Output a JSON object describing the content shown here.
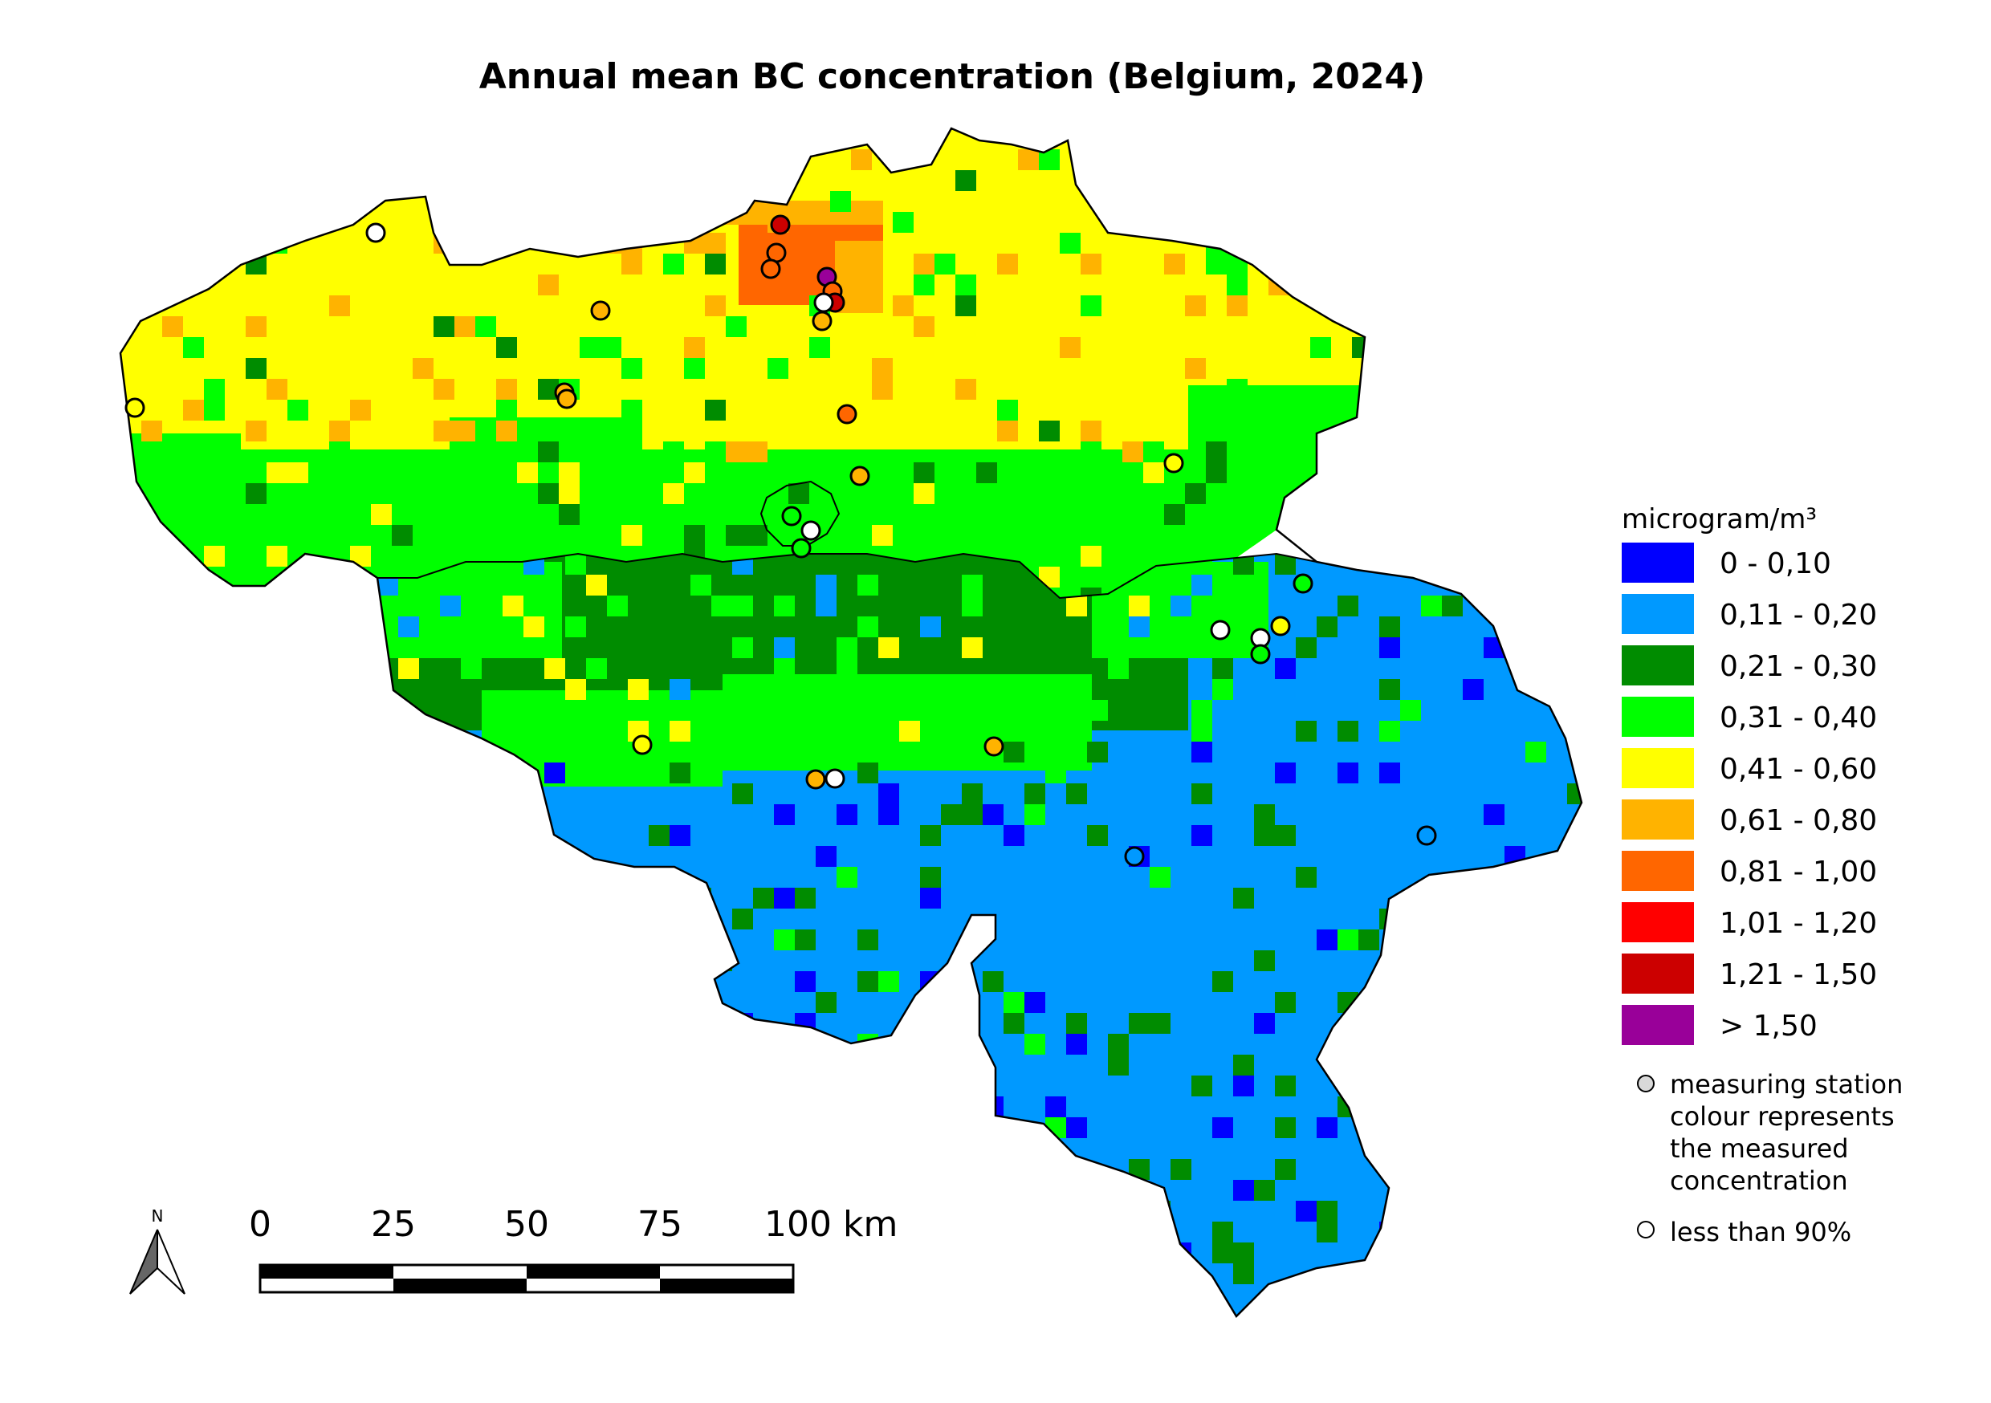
{
  "title": "Annual mean BC concentration (Belgium, 2024)",
  "legend": {
    "unit": "microgram/m³",
    "classes": [
      {
        "label": "0 - 0,10",
        "color": "#0000ff"
      },
      {
        "label": "0,11 - 0,20",
        "color": "#0099ff"
      },
      {
        "label": "0,21 - 0,30",
        "color": "#008c00"
      },
      {
        "label": "0,31 - 0,40",
        "color": "#00ff00"
      },
      {
        "label": "0,41 - 0,60",
        "color": "#ffff00"
      },
      {
        "label": "0,61 - 0,80",
        "color": "#ffb300"
      },
      {
        "label": "0,81 - 1,00",
        "color": "#ff6600"
      },
      {
        "label": "1,01 - 1,20",
        "color": "#ff0000"
      },
      {
        "label": "1,21 - 1,50",
        "color": "#cc0000"
      },
      {
        "label": "> 1,50",
        "color": "#990099"
      }
    ],
    "station_note": [
      "measuring station",
      "colour represents",
      "the measured",
      "concentration"
    ],
    "incomplete_note": "less than 90%"
  },
  "scale_bar": {
    "ticks": [
      "0",
      "25",
      "50",
      "75",
      "100 km"
    ]
  },
  "north_label": "N"
}
